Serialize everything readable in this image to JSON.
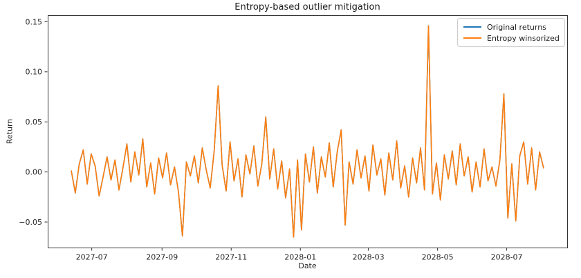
{
  "chart_data": {
    "type": "line",
    "title": "Entropy-based outlier mitigation",
    "xlabel": "Date",
    "ylabel": "Return",
    "grid": false,
    "legend_position": "upper right",
    "x_ticks": [
      "2027-07",
      "2027-09",
      "2027-11",
      "2028-01",
      "2028-03",
      "2028-05",
      "2028-07"
    ],
    "y_ticks": [
      0.15,
      0.1,
      0.05,
      0.0,
      -0.05
    ],
    "y_tick_labels": [
      "0.15",
      "0.10",
      "0.05",
      "0.00",
      "−0.05"
    ],
    "ylim": [
      -0.0755,
      0.1565
    ],
    "x": {
      "unit": "date",
      "start": "2027-06-13",
      "step_days": 3.5,
      "n": 120
    },
    "series": [
      {
        "name": "Original returns",
        "color": "#1f77b4",
        "note": "completely hidden beneath Entropy winsorized line (identical visible values)",
        "values": [
          0.001,
          -0.021,
          0.008,
          0.022,
          -0.012,
          0.018,
          0.006,
          -0.024,
          -0.005,
          0.015,
          -0.008,
          0.012,
          -0.018,
          0.004,
          0.028,
          -0.01,
          0.02,
          -0.003,
          0.033,
          -0.015,
          0.009,
          -0.022,
          0.014,
          -0.006,
          0.019,
          -0.013,
          0.005,
          -0.02,
          -0.064,
          0.01,
          -0.004,
          0.016,
          -0.011,
          0.024,
          0.002,
          -0.016,
          0.021,
          0.086,
          0.007,
          -0.019,
          0.03,
          -0.009,
          0.013,
          -0.025,
          0.017,
          -0.002,
          0.026,
          -0.014,
          0.008,
          0.055,
          -0.007,
          0.023,
          -0.017,
          0.011,
          -0.026,
          0.003,
          -0.065,
          0.012,
          -0.058,
          0.018,
          -0.01,
          0.025,
          -0.021,
          0.015,
          -0.005,
          0.029,
          -0.015,
          0.02,
          0.042,
          -0.053,
          0.01,
          -0.012,
          0.022,
          -0.006,
          0.016,
          -0.019,
          0.027,
          -0.003,
          0.013,
          -0.023,
          0.019,
          -0.008,
          0.031,
          -0.016,
          0.006,
          -0.025,
          0.014,
          -0.011,
          0.024,
          -0.018,
          0.146,
          -0.022,
          0.009,
          -0.028,
          0.017,
          -0.007,
          0.021,
          -0.013,
          0.028,
          -0.004,
          0.015,
          -0.02,
          0.01,
          -0.015,
          0.023,
          -0.009,
          0.005,
          -0.014,
          0.012,
          0.078,
          -0.046,
          0.008,
          -0.049,
          0.016,
          0.03,
          -0.012,
          0.024,
          -0.018,
          0.02,
          0.004
        ]
      },
      {
        "name": "Entropy winsorized",
        "color": "#ff7f0e",
        "values": [
          0.001,
          -0.021,
          0.008,
          0.022,
          -0.012,
          0.018,
          0.006,
          -0.024,
          -0.005,
          0.015,
          -0.008,
          0.012,
          -0.018,
          0.004,
          0.028,
          -0.01,
          0.02,
          -0.003,
          0.033,
          -0.015,
          0.009,
          -0.022,
          0.014,
          -0.006,
          0.019,
          -0.013,
          0.005,
          -0.02,
          -0.064,
          0.01,
          -0.004,
          0.016,
          -0.011,
          0.024,
          0.002,
          -0.016,
          0.021,
          0.086,
          0.007,
          -0.019,
          0.03,
          -0.009,
          0.013,
          -0.025,
          0.017,
          -0.002,
          0.026,
          -0.014,
          0.008,
          0.055,
          -0.007,
          0.023,
          -0.017,
          0.011,
          -0.026,
          0.003,
          -0.065,
          0.012,
          -0.058,
          0.018,
          -0.01,
          0.025,
          -0.021,
          0.015,
          -0.005,
          0.029,
          -0.015,
          0.02,
          0.042,
          -0.053,
          0.01,
          -0.012,
          0.022,
          -0.006,
          0.016,
          -0.019,
          0.027,
          -0.003,
          0.013,
          -0.023,
          0.019,
          -0.008,
          0.031,
          -0.016,
          0.006,
          -0.025,
          0.014,
          -0.011,
          0.024,
          -0.018,
          0.146,
          -0.022,
          0.009,
          -0.028,
          0.017,
          -0.007,
          0.021,
          -0.013,
          0.028,
          -0.004,
          0.015,
          -0.02,
          0.01,
          -0.015,
          0.023,
          -0.009,
          0.005,
          -0.014,
          0.012,
          0.078,
          -0.046,
          0.008,
          -0.049,
          0.016,
          0.03,
          -0.012,
          0.024,
          -0.018,
          0.02,
          0.004
        ]
      }
    ],
    "notable_points": [
      {
        "date": "2027-09-19",
        "value": -0.064
      },
      {
        "date": "2027-10-20",
        "value": 0.086
      },
      {
        "date": "2027-12-01",
        "value": 0.055
      },
      {
        "date": "2027-12-26",
        "value": -0.065
      },
      {
        "date": "2028-01-02",
        "value": -0.058
      },
      {
        "date": "2028-02-06",
        "value": 0.042
      },
      {
        "date": "2028-02-09",
        "value": -0.053
      },
      {
        "date": "2028-04-23",
        "value": 0.146
      },
      {
        "date": "2028-06-28",
        "value": 0.078
      },
      {
        "date": "2028-07-02",
        "value": -0.046
      },
      {
        "date": "2028-07-09",
        "value": -0.049
      }
    ],
    "colors": {
      "background": "#ffffff",
      "spine": "#333333",
      "text": "#262626"
    }
  }
}
